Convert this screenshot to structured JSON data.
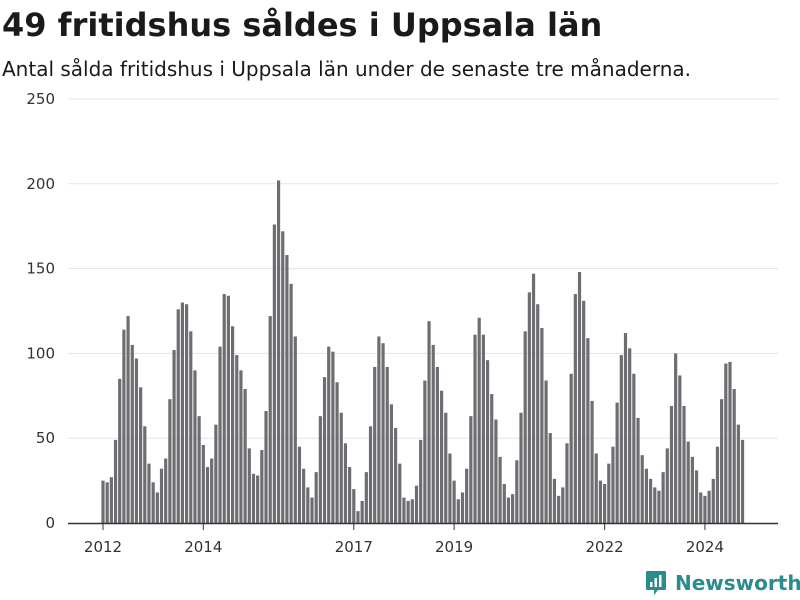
{
  "title": "49 fritidshus såldes i Uppsala län",
  "subtitle": "Antal sålda fritidshus i Uppsala län under de senaste tre månaderna.",
  "brand": {
    "name": "Newsworthy",
    "color": "#2a8c8c"
  },
  "chart_data": {
    "type": "bar",
    "title": "49 fritidshus såldes i Uppsala län",
    "subtitle": "Antal sålda fritidshus i Uppsala län under de senaste tre månaderna.",
    "xlabel": "",
    "ylabel": "",
    "ylim": [
      0,
      250
    ],
    "yticks": [
      0,
      50,
      100,
      150,
      200,
      250
    ],
    "xticks": [
      "2012",
      "2014",
      "2017",
      "2019",
      "2022",
      "2024"
    ],
    "xtick_positions": [
      0,
      24,
      60,
      84,
      120,
      144
    ],
    "grid": "horizontal",
    "bar_color": "#6e6d72",
    "highlight_color": "#1a9a8a",
    "highlight_index": 154,
    "highlight_label": "49",
    "series": [
      {
        "values": [
          25,
          24,
          27,
          49,
          85,
          114,
          122,
          105,
          97,
          80,
          57,
          35,
          24,
          18,
          32,
          38,
          73,
          102,
          126,
          130,
          129,
          113,
          90,
          63,
          46,
          33,
          38,
          58,
          104,
          135,
          134,
          116,
          99,
          90,
          79,
          44,
          29,
          28,
          43,
          66,
          122,
          176,
          202,
          172,
          158,
          141,
          110,
          45,
          32,
          21,
          15,
          30,
          63,
          86,
          104,
          101,
          83,
          65,
          47,
          33,
          20,
          7,
          13,
          30,
          57,
          92,
          110,
          106,
          92,
          70,
          56,
          35,
          15,
          13,
          14,
          22,
          49,
          84,
          119,
          105,
          92,
          78,
          65,
          41,
          25,
          14,
          18,
          32,
          63,
          111,
          121,
          111,
          96,
          76,
          61,
          39,
          23,
          15,
          17,
          37,
          65,
          113,
          136,
          147,
          129,
          115,
          84,
          53,
          26,
          16,
          21,
          47,
          88,
          135,
          148,
          131,
          109,
          72,
          41,
          25,
          23,
          35,
          45,
          71,
          99,
          112,
          103,
          88,
          62,
          40,
          32,
          26,
          21,
          19,
          30,
          44,
          69,
          100,
          87,
          69,
          48,
          39,
          31,
          18,
          16,
          19,
          26,
          45,
          73,
          94,
          95,
          79,
          58,
          49
        ]
      }
    ]
  }
}
